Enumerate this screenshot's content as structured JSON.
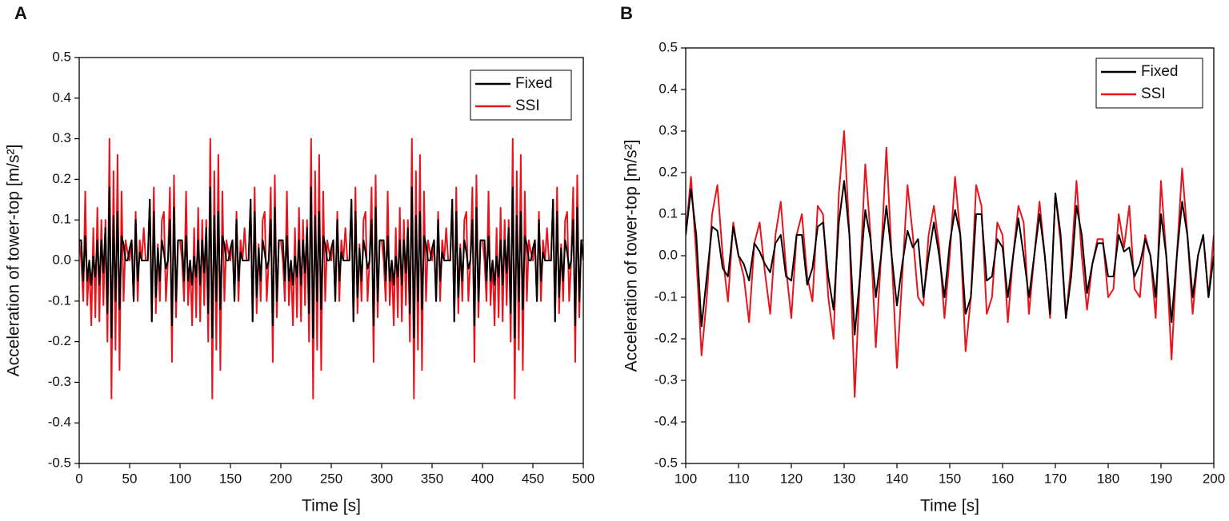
{
  "chart_data": [
    {
      "type": "line",
      "panel_label": "A",
      "xlabel": "Time [s]",
      "ylabel": "Acceleration of tower-top [m/s²]",
      "legend": "upper right",
      "xlim": [
        0,
        500
      ],
      "ylim": [
        -0.5,
        0.5
      ],
      "xticks": [
        0,
        50,
        100,
        150,
        200,
        250,
        300,
        350,
        400,
        450,
        500
      ],
      "yticks": [
        -0.5,
        -0.4,
        -0.3,
        -0.2,
        -0.1,
        {
          "value": 0,
          "label": "0.0"
        },
        0.1,
        0.2,
        0.3,
        0.4,
        0.5
      ],
      "x": [
        0,
        2,
        4,
        6,
        8,
        10,
        12,
        14,
        16,
        18,
        20,
        22,
        24,
        26,
        28,
        30,
        32,
        34,
        36,
        38,
        40,
        42,
        44,
        46,
        48,
        50,
        52,
        54,
        56,
        58,
        60,
        62,
        64,
        66,
        68,
        70,
        72,
        74,
        76,
        78,
        80,
        82,
        84,
        86,
        88,
        90,
        92,
        94,
        96,
        98,
        100,
        102,
        104,
        106,
        108,
        110,
        112,
        114,
        116,
        118,
        120,
        122,
        124,
        126,
        128,
        130,
        132,
        134,
        136,
        138,
        140,
        142,
        144,
        146,
        148,
        150,
        152,
        154,
        156,
        158,
        160,
        162,
        164,
        166,
        168,
        170,
        172,
        174,
        176,
        178,
        180,
        182,
        184,
        186,
        188,
        190,
        192,
        194,
        196,
        198,
        200,
        202,
        204,
        206,
        208,
        210,
        212,
        214,
        216,
        218,
        220,
        222,
        224,
        226,
        228,
        230,
        232,
        234,
        236,
        238,
        240,
        242,
        244,
        246,
        248,
        250,
        252,
        254,
        256,
        258,
        260,
        262,
        264,
        266,
        268,
        270,
        272,
        274,
        276,
        278,
        280,
        282,
        284,
        286,
        288,
        290,
        292,
        294,
        296,
        298,
        300,
        302,
        304,
        306,
        308,
        310,
        312,
        314,
        316,
        318,
        320,
        322,
        324,
        326,
        328,
        330,
        332,
        334,
        336,
        338,
        340,
        342,
        344,
        346,
        348,
        350,
        352,
        354,
        356,
        358,
        360,
        362,
        364,
        366,
        368,
        370,
        372,
        374,
        376,
        378,
        380,
        382,
        384,
        386,
        388,
        390,
        392,
        394,
        396,
        398,
        400,
        402,
        404,
        406,
        408,
        410,
        412,
        414,
        416,
        418,
        420,
        422,
        424,
        426,
        428,
        430,
        432,
        434,
        436,
        438,
        440,
        442,
        444,
        446,
        448,
        450,
        452,
        454,
        456,
        458,
        460,
        462,
        464,
        466,
        468,
        470,
        472,
        474,
        476,
        478,
        480,
        482,
        484,
        486,
        488,
        490,
        492,
        494,
        496,
        498,
        500
      ],
      "series": [
        {
          "name": "Fixed",
          "color": "#000000",
          "values": [
            0.05,
            0.05,
            -0.05,
            0.06,
            -0.05,
            0.0,
            -0.06,
            0.01,
            -0.04,
            0.05,
            -0.06,
            0.05,
            -0.03,
            0.08,
            -0.13,
            0.18,
            -0.19,
            0.11,
            -0.1,
            0.12,
            -0.12,
            0.06,
            0.04,
            0.0,
            0.0,
            0.03,
            0.05,
            -0.1,
            0.1,
            -0.05,
            0.02,
            0.0,
            0.0,
            0.0,
            0.0,
            0.15,
            -0.15,
            0.12,
            -0.09,
            0.03,
            -0.05,
            0.05,
            0.02,
            -0.02,
            0.0,
            0.1,
            -0.16,
            0.13,
            -0.1,
            0.05,
            0.05,
            0.05,
            -0.05,
            0.06,
            -0.05,
            0.0,
            -0.06,
            0.01,
            -0.04,
            0.05,
            -0.06,
            0.05,
            -0.03,
            0.08,
            -0.13,
            0.18,
            -0.19,
            0.11,
            -0.1,
            0.12,
            -0.12,
            0.06,
            0.04,
            0.0,
            0.0,
            0.03,
            0.05,
            -0.1,
            0.1,
            -0.05,
            0.02,
            0.0,
            0.0,
            0.0,
            0.0,
            0.15,
            -0.15,
            0.12,
            -0.09,
            0.03,
            -0.05,
            0.05,
            0.02,
            -0.02,
            0.0,
            0.1,
            -0.16,
            0.13,
            -0.1,
            0.05,
            0.05,
            0.05,
            -0.05,
            0.06,
            -0.05,
            0.0,
            -0.06,
            0.01,
            -0.04,
            0.05,
            -0.06,
            0.05,
            -0.03,
            0.08,
            -0.13,
            0.18,
            -0.19,
            0.11,
            -0.1,
            0.12,
            -0.12,
            0.06,
            0.04,
            0.0,
            0.0,
            0.03,
            0.05,
            -0.1,
            0.1,
            -0.05,
            0.02,
            0.0,
            0.0,
            0.0,
            0.0,
            0.15,
            -0.15,
            0.12,
            -0.09,
            0.03,
            -0.05,
            0.05,
            0.02,
            -0.02,
            0.0,
            0.1,
            -0.16,
            0.13,
            -0.1,
            0.05,
            0.05,
            0.05,
            -0.05,
            0.06,
            -0.05,
            0.0,
            -0.06,
            0.01,
            -0.04,
            0.05,
            -0.06,
            0.05,
            -0.03,
            0.08,
            -0.13,
            0.18,
            -0.19,
            0.11,
            -0.1,
            0.12,
            -0.12,
            0.06,
            0.04,
            0.0,
            0.0,
            0.03,
            0.05,
            -0.1,
            0.1,
            -0.05,
            0.02,
            0.0,
            0.0,
            0.0,
            0.0,
            0.15,
            -0.15,
            0.12,
            -0.09,
            0.03,
            -0.05,
            0.05,
            0.02,
            -0.02,
            0.0,
            0.1,
            -0.16,
            0.13,
            -0.1,
            0.05,
            0.05,
            0.05,
            -0.05,
            0.06,
            -0.05,
            0.0,
            -0.06,
            0.01,
            -0.04,
            0.05,
            -0.06,
            0.05,
            -0.03,
            0.08,
            -0.13,
            0.18,
            -0.19,
            0.11,
            -0.1,
            0.12,
            -0.12,
            0.06,
            0.04,
            0.0,
            0.0,
            0.03,
            0.05,
            -0.1,
            0.1,
            -0.05,
            0.02,
            0.0,
            0.0,
            0.0,
            0.0,
            0.15,
            -0.15,
            0.12,
            -0.09,
            0.03,
            -0.05,
            0.05,
            0.02,
            -0.02,
            0.0,
            0.1,
            -0.16,
            0.13,
            -0.1,
            0.05,
            0.0
          ]
        },
        {
          "name": "SSI",
          "color": "#e8141c",
          "values": [
            0.05,
            0.0,
            -0.1,
            0.17,
            -0.11,
            0.0,
            -0.16,
            0.08,
            -0.14,
            0.13,
            -0.15,
            0.1,
            -0.11,
            0.1,
            -0.2,
            0.3,
            -0.34,
            0.22,
            -0.22,
            0.26,
            -0.27,
            0.17,
            -0.1,
            0.05,
            0.02,
            0.0,
            0.05,
            -0.1,
            0.12,
            -0.1,
            0.05,
            0.0,
            0.08,
            0.0,
            0.0,
            0.15,
            -0.15,
            0.18,
            -0.13,
            0.04,
            -0.1,
            0.1,
            0.12,
            -0.1,
            0.0,
            0.18,
            -0.25,
            0.21,
            -0.14,
            0.05,
            0.05,
            0.0,
            -0.1,
            0.17,
            -0.11,
            0.0,
            -0.16,
            0.08,
            -0.14,
            0.13,
            -0.15,
            0.1,
            -0.11,
            0.1,
            -0.2,
            0.3,
            -0.34,
            0.22,
            -0.22,
            0.26,
            -0.27,
            0.17,
            -0.1,
            0.05,
            0.02,
            0.0,
            0.05,
            -0.1,
            0.12,
            -0.1,
            0.05,
            0.0,
            0.08,
            0.0,
            0.0,
            0.15,
            -0.15,
            0.18,
            -0.13,
            0.04,
            -0.1,
            0.1,
            0.12,
            -0.1,
            0.0,
            0.18,
            -0.25,
            0.21,
            -0.14,
            0.05,
            0.05,
            0.0,
            -0.1,
            0.17,
            -0.11,
            0.0,
            -0.16,
            0.08,
            -0.14,
            0.13,
            -0.15,
            0.1,
            -0.11,
            0.1,
            -0.2,
            0.3,
            -0.34,
            0.22,
            -0.22,
            0.26,
            -0.27,
            0.17,
            -0.1,
            0.05,
            0.02,
            0.0,
            0.05,
            -0.1,
            0.12,
            -0.1,
            0.05,
            0.0,
            0.08,
            0.0,
            0.0,
            0.15,
            -0.15,
            0.18,
            -0.13,
            0.04,
            -0.1,
            0.1,
            0.12,
            -0.1,
            0.0,
            0.18,
            -0.25,
            0.21,
            -0.14,
            0.05,
            0.05,
            0.0,
            -0.1,
            0.17,
            -0.11,
            0.0,
            -0.16,
            0.08,
            -0.14,
            0.13,
            -0.15,
            0.1,
            -0.11,
            0.1,
            -0.2,
            0.3,
            -0.34,
            0.22,
            -0.22,
            0.26,
            -0.27,
            0.17,
            -0.1,
            0.05,
            0.02,
            0.0,
            0.05,
            -0.1,
            0.12,
            -0.1,
            0.05,
            0.0,
            0.08,
            0.0,
            0.0,
            0.15,
            -0.15,
            0.18,
            -0.13,
            0.04,
            -0.1,
            0.1,
            0.12,
            -0.1,
            0.0,
            0.18,
            -0.25,
            0.21,
            -0.14,
            0.05,
            0.05,
            0.0,
            -0.1,
            0.17,
            -0.11,
            0.0,
            -0.16,
            0.08,
            -0.14,
            0.13,
            -0.15,
            0.1,
            -0.11,
            0.1,
            -0.2,
            0.3,
            -0.34,
            0.22,
            -0.22,
            0.26,
            -0.27,
            0.17,
            -0.1,
            0.05,
            0.02,
            0.0,
            0.05,
            -0.1,
            0.12,
            -0.1,
            0.05,
            0.0,
            0.08,
            0.0,
            0.0,
            0.15,
            -0.15,
            0.18,
            -0.13,
            0.04,
            -0.1,
            0.1,
            0.12,
            -0.1,
            0.0,
            0.18,
            -0.25,
            0.21,
            -0.14,
            0.05,
            0.05
          ]
        }
      ]
    },
    {
      "type": "line",
      "panel_label": "B",
      "xlabel": "Time [s]",
      "ylabel": "Acceleration of tower-top [m/s²]",
      "legend": "upper right",
      "xlim": [
        100,
        200
      ],
      "ylim": [
        -0.5,
        0.5
      ],
      "xticks": [
        100,
        110,
        120,
        130,
        140,
        150,
        160,
        170,
        180,
        190,
        200
      ],
      "yticks": [
        -0.5,
        -0.4,
        -0.3,
        -0.2,
        -0.1,
        {
          "value": 0,
          "label": "0.0"
        },
        0.1,
        0.2,
        0.3,
        0.4,
        0.5
      ],
      "x": [
        100,
        101,
        102,
        103,
        104,
        105,
        106,
        107,
        108,
        109,
        110,
        111,
        112,
        113,
        114,
        115,
        116,
        117,
        118,
        119,
        120,
        121,
        122,
        123,
        124,
        125,
        126,
        127,
        128,
        129,
        130,
        131,
        132,
        133,
        134,
        135,
        136,
        137,
        138,
        139,
        140,
        141,
        142,
        143,
        144,
        145,
        146,
        147,
        148,
        149,
        150,
        151,
        152,
        153,
        154,
        155,
        156,
        157,
        158,
        159,
        160,
        161,
        162,
        163,
        164,
        165,
        166,
        167,
        168,
        169,
        170,
        171,
        172,
        173,
        174,
        175,
        176,
        177,
        178,
        179,
        180,
        181,
        182,
        183,
        184,
        185,
        186,
        187,
        188,
        189,
        190,
        191,
        192,
        193,
        194,
        195,
        196,
        197,
        198,
        199,
        200
      ],
      "series": [
        {
          "name": "Fixed",
          "color": "#000000",
          "values": [
            0.05,
            0.16,
            0.05,
            -0.17,
            -0.05,
            0.07,
            0.06,
            -0.03,
            -0.05,
            0.07,
            0.0,
            -0.02,
            -0.06,
            0.03,
            0.01,
            -0.02,
            -0.04,
            0.03,
            0.05,
            -0.05,
            -0.06,
            0.05,
            0.05,
            -0.07,
            -0.03,
            0.07,
            0.08,
            -0.05,
            -0.13,
            0.08,
            0.18,
            0.05,
            -0.19,
            -0.05,
            0.11,
            0.04,
            -0.1,
            0.0,
            0.12,
            0.0,
            -0.12,
            -0.02,
            0.06,
            0.02,
            0.04,
            -0.1,
            0.0,
            0.08,
            0.0,
            -0.1,
            0.03,
            0.11,
            0.05,
            -0.14,
            -0.1,
            0.1,
            0.1,
            -0.06,
            -0.05,
            0.04,
            0.02,
            -0.1,
            0.0,
            0.09,
            0.0,
            -0.1,
            0.0,
            0.1,
            0.0,
            -0.14,
            0.15,
            0.05,
            -0.15,
            -0.05,
            0.12,
            0.05,
            -0.09,
            -0.02,
            0.03,
            0.03,
            -0.05,
            -0.05,
            0.05,
            0.01,
            0.02,
            -0.05,
            -0.02,
            0.04,
            0.0,
            -0.1,
            0.1,
            0.0,
            -0.16,
            0.0,
            0.13,
            0.05,
            -0.1,
            0.0,
            0.05,
            -0.1,
            0.0
          ]
        },
        {
          "name": "SSI",
          "color": "#e8141c",
          "values": [
            0.05,
            0.19,
            0.0,
            -0.24,
            -0.1,
            0.1,
            0.17,
            0.0,
            -0.11,
            0.08,
            0.0,
            -0.05,
            -0.16,
            0.03,
            0.08,
            -0.04,
            -0.14,
            0.05,
            0.13,
            -0.03,
            -0.15,
            0.05,
            0.1,
            -0.05,
            -0.11,
            0.12,
            0.1,
            -0.1,
            -0.2,
            0.15,
            0.3,
            0.05,
            -0.34,
            -0.05,
            0.22,
            0.05,
            -0.22,
            0.0,
            0.26,
            0.0,
            -0.27,
            -0.05,
            0.17,
            0.05,
            -0.1,
            -0.12,
            0.05,
            0.12,
            0.02,
            -0.15,
            0.0,
            0.19,
            0.05,
            -0.23,
            -0.1,
            0.17,
            0.12,
            -0.14,
            -0.1,
            0.08,
            0.05,
            -0.16,
            0.0,
            0.12,
            0.08,
            -0.14,
            0.0,
            0.13,
            0.0,
            -0.15,
            0.15,
            0.03,
            -0.15,
            -0.02,
            0.18,
            0.0,
            -0.13,
            -0.02,
            0.04,
            0.04,
            -0.1,
            -0.08,
            0.1,
            0.02,
            0.12,
            -0.08,
            -0.1,
            0.05,
            0.0,
            -0.15,
            0.18,
            0.0,
            -0.25,
            0.0,
            0.21,
            0.05,
            -0.14,
            0.0,
            0.05,
            -0.1,
            0.05
          ]
        }
      ]
    }
  ]
}
